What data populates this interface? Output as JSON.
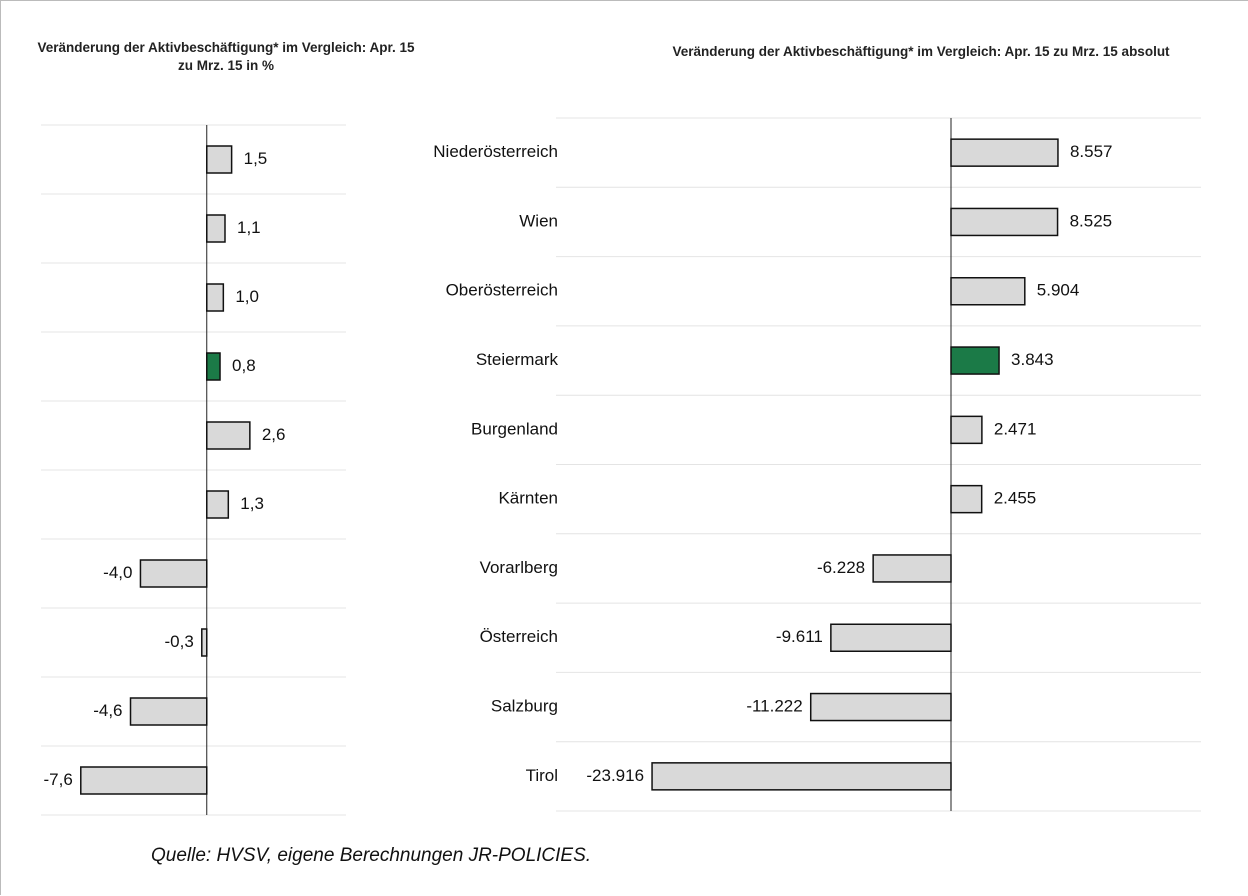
{
  "chart_data": [
    {
      "type": "hbar",
      "title": "Veränderung der Aktivbeschäftigung* im Vergleich: Apr. 15 zu Mrz. 15 in %",
      "values": [
        1.5,
        1.1,
        1.0,
        0.8,
        2.6,
        1.3,
        -4.0,
        -0.3,
        -4.6,
        -7.6
      ],
      "value_labels": [
        "1,5",
        "1,1",
        "1,0",
        "0,8",
        "2,6",
        "1,3",
        "-4,0",
        "-0,3",
        "-4,6",
        "-7,6"
      ],
      "colors": [
        "#d9d9d9",
        "#d9d9d9",
        "#d9d9d9",
        "#1b7a47",
        "#d9d9d9",
        "#d9d9d9",
        "#d9d9d9",
        "#d9d9d9",
        "#d9d9d9",
        "#d9d9d9"
      ],
      "xlim": [
        -10,
        8.4
      ],
      "grid": true
    },
    {
      "type": "hbar",
      "title": "Veränderung der Aktivbeschäftigung* im Vergleich: Apr. 15 zu Mrz. 15 absolut",
      "categories": [
        "Niederösterreich",
        "Wien",
        "Oberösterreich",
        "Steiermark",
        "Burgenland",
        "Kärnten",
        "Vorarlberg",
        "Österreich",
        "Salzburg",
        "Tirol"
      ],
      "values": [
        8557,
        8525,
        5904,
        3843,
        2471,
        2455,
        -6228,
        -9611,
        -11222,
        -23916
      ],
      "value_labels": [
        "8.557",
        "8.525",
        "5.904",
        "3.843",
        "2.471",
        "2.455",
        "-6.228",
        "-9.611",
        "-11.222",
        "-23.916"
      ],
      "colors": [
        "#d9d9d9",
        "#d9d9d9",
        "#d9d9d9",
        "#1b7a47",
        "#d9d9d9",
        "#d9d9d9",
        "#d9d9d9",
        "#d9d9d9",
        "#d9d9d9",
        "#d9d9d9"
      ],
      "xlim": [
        -31600,
        20000
      ],
      "grid": true
    }
  ],
  "source": "Quelle: HVSV, eigene Berechnungen JR-POLICIES."
}
